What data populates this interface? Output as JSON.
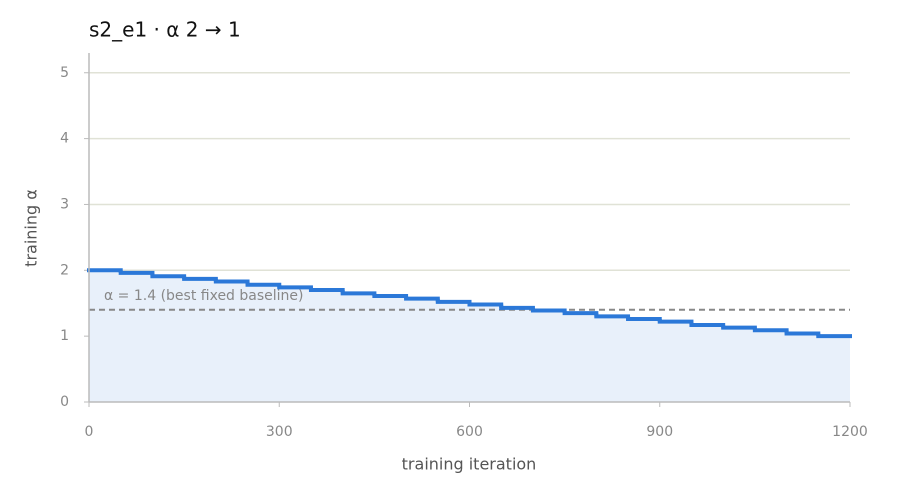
{
  "chart_data": {
    "type": "step",
    "title": "s2_e1   ·   α 2 → 1",
    "x_label": "training iteration",
    "y_label": "training α",
    "x": [
      0,
      50,
      100,
      150,
      200,
      250,
      300,
      350,
      400,
      450,
      500,
      550,
      600,
      650,
      700,
      750,
      800,
      850,
      900,
      950,
      1000,
      1050,
      1100,
      1150
    ],
    "values": [
      2,
      1.96,
      1.91,
      1.87,
      1.83,
      1.78,
      1.74,
      1.7,
      1.65,
      1.61,
      1.57,
      1.52,
      1.48,
      1.43,
      1.39,
      1.35,
      1.3,
      1.26,
      1.22,
      1.17,
      1.13,
      1.09,
      1.04,
      1.0
    ],
    "color": "#2b78d8",
    "fill_color": "#e8f0fa",
    "xlim": [
      0,
      1200
    ],
    "xticks": [
      0,
      300,
      600,
      900,
      1200
    ],
    "ylim": [
      0,
      5.3
    ],
    "yticks": [
      0,
      1,
      2,
      3,
      4,
      5
    ],
    "grid": true,
    "reference_line": {
      "value": 1.4,
      "label": "α = 1.4 (best fixed baseline)",
      "color": "#888888"
    }
  }
}
